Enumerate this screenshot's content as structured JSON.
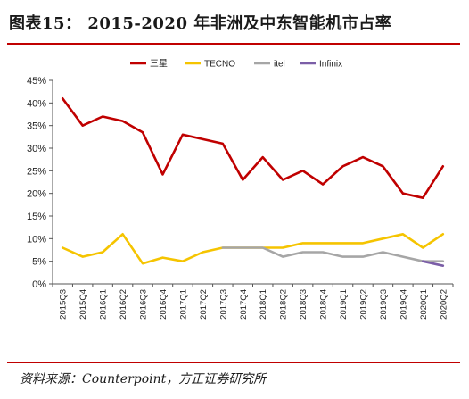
{
  "title": "图表15：  2015-2020 年非洲及中东智能机市占率",
  "source": "资料来源：Counterpoint，方正证券研究所",
  "chart_data": {
    "type": "line",
    "x": [
      "2015Q3",
      "2015Q4",
      "2016Q1",
      "2016Q2",
      "2016Q3",
      "2016Q4",
      "2017Q1",
      "2017Q2",
      "2017Q3",
      "2017Q4",
      "2018Q1",
      "2018Q2",
      "2018Q3",
      "2018Q4",
      "2019Q1",
      "2019Q2",
      "2019Q3",
      "2019Q4",
      "2020Q1",
      "2020Q2"
    ],
    "ylim": [
      0,
      45
    ],
    "yticks": [
      0,
      5,
      10,
      15,
      20,
      25,
      30,
      35,
      40,
      45
    ],
    "ytick_labels": [
      "0%",
      "5%",
      "10%",
      "15%",
      "20%",
      "25%",
      "30%",
      "35%",
      "40%",
      "45%"
    ],
    "legend_position": "top",
    "grid": false,
    "series": [
      {
        "name": "三星",
        "color": "#c00000",
        "values": [
          41,
          35,
          37,
          36,
          33.5,
          24.2,
          33,
          32,
          31,
          23,
          28,
          23,
          25,
          22,
          26,
          28,
          26,
          20,
          19,
          26
        ]
      },
      {
        "name": "TECNO",
        "color": "#f5c400",
        "values": [
          8,
          6,
          7,
          11,
          4.5,
          5.8,
          5,
          7,
          8,
          8,
          8,
          8,
          9,
          9,
          9,
          9,
          10,
          11,
          8,
          11
        ]
      },
      {
        "name": "itel",
        "color": "#a6a6a6",
        "values": [
          null,
          null,
          null,
          null,
          null,
          null,
          null,
          null,
          8,
          8,
          8,
          6,
          7,
          7,
          6,
          6,
          7,
          6,
          5,
          5
        ]
      },
      {
        "name": "Infinix",
        "color": "#7b5ea7",
        "values": [
          null,
          null,
          null,
          null,
          null,
          null,
          null,
          null,
          null,
          null,
          null,
          null,
          null,
          null,
          null,
          null,
          null,
          null,
          5,
          4
        ]
      }
    ]
  }
}
